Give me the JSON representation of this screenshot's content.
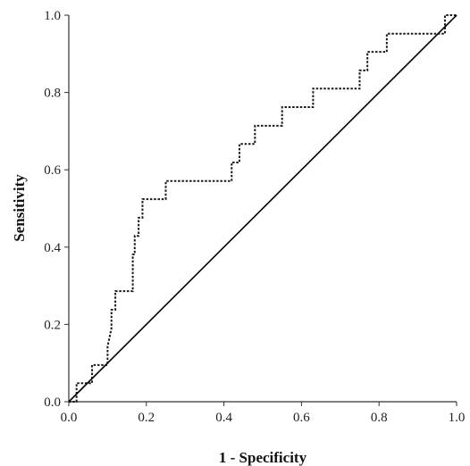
{
  "chart_data": {
    "type": "line",
    "title": "",
    "xlabel": "1 - Specificity",
    "ylabel": "Sensitivity",
    "xlim": [
      0,
      1
    ],
    "ylim": [
      0,
      1
    ],
    "x_ticks": [
      "0.0",
      "0.2",
      "0.4",
      "0.6",
      "0.8",
      "1.0"
    ],
    "y_ticks": [
      "0.0",
      "0.2",
      "0.4",
      "0.6",
      "0.8",
      "1.0"
    ],
    "grid": false,
    "legend": "none",
    "series": [
      {
        "style": "dotted",
        "color": "#1a1a1a",
        "x": [
          0,
          0.02,
          0.02,
          0.04,
          0.04,
          0.06,
          0.06,
          0.1,
          0.1,
          0.11,
          0.11,
          0.12,
          0.12,
          0.165,
          0.165,
          0.17,
          0.17,
          0.18,
          0.18,
          0.19,
          0.19,
          0.25,
          0.25,
          0.42,
          0.42,
          0.44,
          0.44,
          0.48,
          0.48,
          0.55,
          0.55,
          0.63,
          0.63,
          0.75,
          0.75,
          0.77,
          0.77,
          0.82,
          0.82,
          0.97,
          0.97,
          1.0
        ],
        "y": [
          0,
          0,
          0.048,
          0.048,
          0.048,
          0.048,
          0.095,
          0.095,
          0.143,
          0.19,
          0.238,
          0.238,
          0.286,
          0.286,
          0.381,
          0.381,
          0.429,
          0.429,
          0.476,
          0.476,
          0.524,
          0.524,
          0.571,
          0.571,
          0.619,
          0.619,
          0.667,
          0.667,
          0.714,
          0.714,
          0.762,
          0.762,
          0.81,
          0.81,
          0.857,
          0.857,
          0.905,
          0.905,
          0.952,
          0.952,
          1.0,
          1.0
        ]
      },
      {
        "style": "solid",
        "color": "#000000",
        "x": [
          0,
          1
        ],
        "y": [
          0,
          1
        ]
      }
    ]
  }
}
